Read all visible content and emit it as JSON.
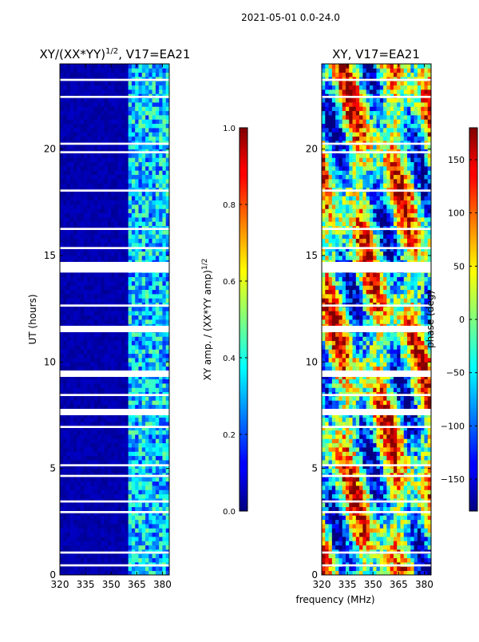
{
  "suptitle": "2021-05-01 0.0-24.0",
  "xlabel_shared": "frequency (MHz)",
  "chart_data": [
    {
      "type": "heatmap",
      "title_main": "XY/(XX*YY)",
      "title_sup": "1/2",
      "title_tail": ", V17=EA21",
      "ylabel": "UT (hours)",
      "x_ticks": [
        320,
        335,
        350,
        365,
        380
      ],
      "x_tick_labels": [
        "320",
        "335",
        "350",
        "365",
        "380"
      ],
      "xlim": [
        320,
        384
      ],
      "y_ticks": [
        0,
        5,
        10,
        15,
        20
      ],
      "y_tick_labels": [
        "0",
        "5",
        "10",
        "15",
        "20"
      ],
      "ylim": [
        0,
        24
      ],
      "colorbar": {
        "label_main": "XY amp. / (XX*YY amp)",
        "label_sup": "1/2",
        "range": [
          0.0,
          1.0
        ],
        "ticks": [
          0.0,
          0.2,
          0.4,
          0.6,
          0.8,
          1.0
        ],
        "tick_labels": [
          "0.0",
          "0.2",
          "0.4",
          "0.6",
          "0.8",
          "1.0"
        ]
      },
      "active_band_mhz": [
        361,
        383
      ],
      "flagged_hour_bands": [
        [
          0.4,
          0.5
        ],
        [
          1.0,
          1.1
        ],
        [
          2.9,
          3.0
        ],
        [
          3.4,
          3.5
        ],
        [
          4.6,
          4.7
        ],
        [
          5.1,
          5.2
        ],
        [
          6.9,
          7.0
        ],
        [
          7.5,
          7.8
        ],
        [
          8.4,
          8.5
        ],
        [
          9.3,
          9.6
        ],
        [
          11.4,
          11.7
        ],
        [
          12.6,
          12.7
        ],
        [
          14.2,
          14.7
        ],
        [
          15.3,
          15.4
        ],
        [
          16.2,
          16.3
        ],
        [
          18.0,
          18.1
        ],
        [
          19.8,
          19.9
        ],
        [
          20.2,
          20.3
        ],
        [
          22.4,
          22.5
        ],
        [
          23.2,
          23.3
        ]
      ]
    },
    {
      "type": "heatmap",
      "title_main": "XY, V17=EA21",
      "ylabel": "",
      "x_ticks": [
        320,
        335,
        350,
        365,
        380
      ],
      "x_tick_labels": [
        "320",
        "335",
        "350",
        "365",
        "380"
      ],
      "xlim": [
        320,
        384
      ],
      "y_ticks": [
        0,
        5,
        10,
        15,
        20
      ],
      "y_tick_labels": [
        "0",
        "5",
        "10",
        "15",
        "20"
      ],
      "ylim": [
        0,
        24
      ],
      "colorbar": {
        "label_main": "phase (deg)",
        "range": [
          -180,
          180
        ],
        "ticks": [
          -150,
          -100,
          -50,
          0,
          50,
          100,
          150
        ],
        "tick_labels": [
          "−150",
          "−100",
          "−50",
          "0",
          "50",
          "100",
          "150"
        ]
      },
      "flagged_hour_bands": [
        [
          0.4,
          0.5
        ],
        [
          1.0,
          1.1
        ],
        [
          2.9,
          3.0
        ],
        [
          3.4,
          3.5
        ],
        [
          4.6,
          4.7
        ],
        [
          5.1,
          5.2
        ],
        [
          6.9,
          7.0
        ],
        [
          7.5,
          7.8
        ],
        [
          8.4,
          8.5
        ],
        [
          9.3,
          9.6
        ],
        [
          11.4,
          11.7
        ],
        [
          12.6,
          12.7
        ],
        [
          14.2,
          14.7
        ],
        [
          15.3,
          15.4
        ],
        [
          16.2,
          16.3
        ],
        [
          18.0,
          18.1
        ],
        [
          19.8,
          19.9
        ],
        [
          20.2,
          20.3
        ],
        [
          22.4,
          22.5
        ],
        [
          23.2,
          23.3
        ]
      ]
    }
  ]
}
